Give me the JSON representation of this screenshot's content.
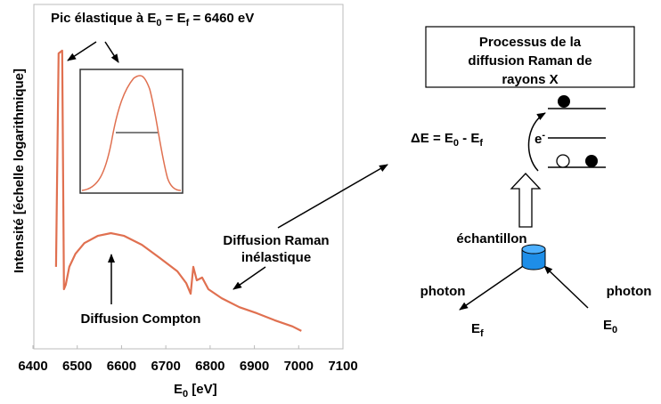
{
  "chart_data": {
    "type": "line",
    "xlabel": {
      "parts": [
        "E",
        "0",
        " [eV]"
      ],
      "shift": "sub"
    },
    "ylabel": "Intensité [échelle logarithmique]",
    "x": [
      6452,
      6458,
      6466,
      6470,
      6474,
      6482,
      6496,
      6516,
      6546,
      6576,
      6606,
      6646,
      6686,
      6726,
      6746,
      6756,
      6762,
      6770,
      6782,
      6796,
      6826,
      6866,
      6906,
      6946,
      6986,
      7006
    ],
    "values": [
      23.8,
      85.8,
      86.6,
      17.3,
      18.6,
      23.8,
      27.6,
      30.7,
      32.8,
      33.6,
      32.8,
      30.2,
      26.4,
      22.5,
      19.1,
      16.0,
      23.8,
      19.9,
      20.7,
      17.3,
      14.7,
      12.1,
      10.3,
      8.3,
      6.5,
      5.2
    ],
    "color": "#e07050",
    "xlim": [
      6400,
      7100
    ],
    "xticks": [
      6400,
      6500,
      6600,
      6700,
      6800,
      6900,
      7000,
      7100
    ],
    "ylim": [
      0,
      100
    ],
    "grid": false,
    "annotations": [
      {
        "parts": [
          "Pic élastique à E",
          "0",
          " = E",
          "f",
          " = 6460 eV"
        ],
        "shift": "sub"
      },
      {
        "parts": [
          "Diffusion Raman"
        ]
      },
      {
        "parts": [
          "inélastique"
        ]
      },
      {
        "parts": [
          "Diffusion Compton"
        ]
      }
    ]
  },
  "diagram": {
    "box_lines": [
      "Processus de la",
      "diffusion Raman de",
      "rayons X"
    ],
    "delta": {
      "parts": [
        "ΔE = E",
        "0",
        " - E",
        "f"
      ],
      "shift": "sub"
    },
    "electron": {
      "parts": [
        "e",
        "-"
      ],
      "shift": "sup"
    },
    "sample": "échantillon",
    "photon_out": "photon",
    "photon_in": "photon",
    "e_out": {
      "parts": [
        "E",
        "f"
      ],
      "shift": "sub"
    },
    "e_in": {
      "parts": [
        "E",
        "0"
      ],
      "shift": "sub"
    }
  }
}
